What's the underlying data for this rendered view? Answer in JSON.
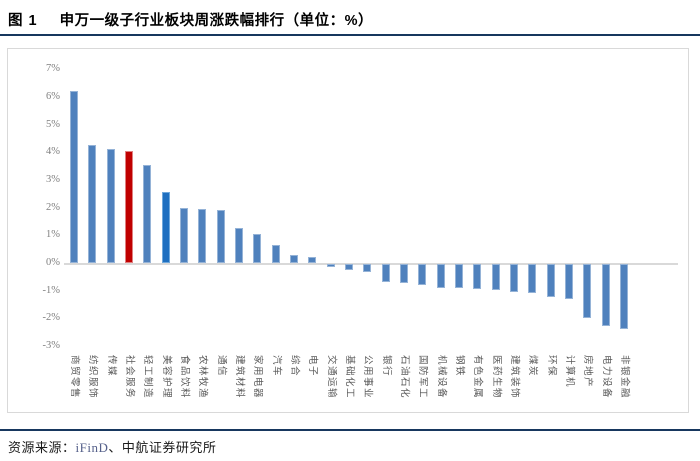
{
  "figure": {
    "label": "图 1",
    "title": "申万一级子行业板块周涨跌幅排行（单位：%）"
  },
  "source": {
    "prefix": "资源来源：",
    "provider": "iFinD",
    "suffix": "、中航证券研究所"
  },
  "colors": {
    "rule_navy": "#17375e",
    "frame_border": "#d9d9d9",
    "bar_default_fill": "#4f81bd",
    "bar_default_border": "#95b3d7",
    "zero_line": "#d9d9d9",
    "ytick_text": "#808080",
    "xlabel_text": "#595959",
    "provider_text": "#55608a"
  },
  "chart_data": {
    "type": "bar",
    "title": "申万一级子行业板块周涨跌幅排行",
    "unit": "%",
    "ylim": [
      -3,
      7
    ],
    "yticks": [
      7,
      6,
      5,
      4,
      3,
      2,
      1,
      0,
      -1,
      -2,
      -3
    ],
    "ytick_suffix": "%",
    "grid": false,
    "legend": "none",
    "categories": [
      "商贸零售",
      "纺织服饰",
      "传媒",
      "社会服务",
      "轻工制造",
      "美容护理",
      "食品饮料",
      "农林牧渔",
      "通信",
      "建筑材料",
      "家用电器",
      "汽车",
      "综合",
      "电子",
      "交通运输",
      "基础化工",
      "公用事业",
      "银行",
      "石油石化",
      "国防军工",
      "机械设备",
      "钢铁",
      "有色金属",
      "医药生物",
      "建筑装饰",
      "煤炭",
      "环保",
      "计算机",
      "房地产",
      "电力设备",
      "非银金融"
    ],
    "values": [
      6.2,
      4.25,
      4.1,
      4.05,
      3.55,
      2.55,
      2.0,
      1.95,
      1.9,
      1.25,
      1.05,
      0.65,
      0.3,
      0.2,
      -0.1,
      -0.2,
      -0.3,
      -0.65,
      -0.7,
      -0.75,
      -0.85,
      -0.85,
      -0.9,
      -0.95,
      -1.0,
      -1.05,
      -1.2,
      -1.25,
      -1.95,
      -2.25,
      -2.35
    ],
    "highlights": {
      "社会服务": {
        "fill": "#c00000",
        "border": "#e08080"
      },
      "美容护理": {
        "fill": "#1e6fc0",
        "border": "#6fa8dc"
      }
    }
  }
}
